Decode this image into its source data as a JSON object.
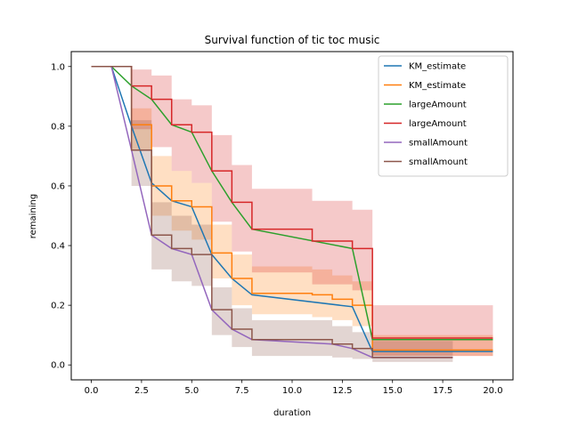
{
  "chart_data": {
    "type": "line",
    "title": "Survival function of tic toc music",
    "xlabel": "duration",
    "ylabel": "remaining",
    "xlim": [
      -1,
      21
    ],
    "ylim": [
      -0.05,
      1.05
    ],
    "xticks": [
      0.0,
      2.5,
      5.0,
      7.5,
      10.0,
      12.5,
      15.0,
      17.5,
      20.0
    ],
    "xtick_labels": [
      "0.0",
      "2.5",
      "5.0",
      "7.5",
      "10.0",
      "12.5",
      "15.0",
      "17.5",
      "20.0"
    ],
    "yticks": [
      0.0,
      0.2,
      0.4,
      0.6,
      0.8,
      1.0
    ],
    "ytick_labels": [
      "0.0",
      "0.2",
      "0.4",
      "0.6",
      "0.8",
      "1.0"
    ],
    "grid": false,
    "legend_position": "top-right",
    "series": [
      {
        "name": "KM_estimate",
        "color": "#1f77b4",
        "style": "line",
        "points": [
          [
            0,
            1.0
          ],
          [
            1,
            1.0
          ],
          [
            2,
            0.8
          ],
          [
            3,
            0.61
          ],
          [
            4,
            0.55
          ],
          [
            5,
            0.53
          ],
          [
            6,
            0.37
          ],
          [
            7,
            0.29
          ],
          [
            8,
            0.235
          ],
          [
            13,
            0.195
          ],
          [
            14,
            0.045
          ],
          [
            20,
            0.045
          ]
        ]
      },
      {
        "name": "KM_estimate",
        "color": "#ff7f0e",
        "style": "step",
        "points": [
          [
            0,
            1.0
          ],
          [
            2,
            1.0
          ],
          [
            2,
            0.805
          ],
          [
            3,
            0.805
          ],
          [
            3,
            0.6
          ],
          [
            4,
            0.6
          ],
          [
            4,
            0.55
          ],
          [
            5,
            0.55
          ],
          [
            5,
            0.53
          ],
          [
            6,
            0.53
          ],
          [
            6,
            0.375
          ],
          [
            7,
            0.375
          ],
          [
            7,
            0.29
          ],
          [
            8,
            0.29
          ],
          [
            8,
            0.24
          ],
          [
            11,
            0.24
          ],
          [
            11,
            0.235
          ],
          [
            12,
            0.235
          ],
          [
            12,
            0.22
          ],
          [
            13,
            0.22
          ],
          [
            13,
            0.2
          ],
          [
            14,
            0.2
          ],
          [
            14,
            0.05
          ],
          [
            20,
            0.05
          ]
        ],
        "ci_upper": [
          [
            2,
            1.0
          ],
          [
            2,
            0.86
          ],
          [
            3,
            0.86
          ],
          [
            3,
            0.7
          ],
          [
            4,
            0.7
          ],
          [
            4,
            0.65
          ],
          [
            5,
            0.65
          ],
          [
            5,
            0.61
          ],
          [
            6,
            0.61
          ],
          [
            6,
            0.47
          ],
          [
            7,
            0.47
          ],
          [
            7,
            0.37
          ],
          [
            8,
            0.37
          ],
          [
            8,
            0.33
          ],
          [
            11,
            0.33
          ],
          [
            11,
            0.32
          ],
          [
            12,
            0.32
          ],
          [
            12,
            0.3
          ],
          [
            13,
            0.3
          ],
          [
            13,
            0.28
          ],
          [
            14,
            0.28
          ],
          [
            14,
            0.1
          ],
          [
            20,
            0.1
          ]
        ],
        "ci_lower": [
          [
            2,
            1.0
          ],
          [
            2,
            0.72
          ],
          [
            3,
            0.72
          ],
          [
            3,
            0.5
          ],
          [
            4,
            0.5
          ],
          [
            4,
            0.45
          ],
          [
            5,
            0.45
          ],
          [
            5,
            0.42
          ],
          [
            6,
            0.42
          ],
          [
            6,
            0.29
          ],
          [
            7,
            0.29
          ],
          [
            7,
            0.2
          ],
          [
            8,
            0.2
          ],
          [
            8,
            0.17
          ],
          [
            11,
            0.17
          ],
          [
            11,
            0.16
          ],
          [
            12,
            0.16
          ],
          [
            12,
            0.15
          ],
          [
            13,
            0.15
          ],
          [
            13,
            0.13
          ],
          [
            14,
            0.13
          ],
          [
            14,
            0.03
          ],
          [
            20,
            0.03
          ]
        ]
      },
      {
        "name": "largeAmount",
        "color": "#2ca02c",
        "style": "line",
        "points": [
          [
            0,
            1.0
          ],
          [
            1,
            1.0
          ],
          [
            2,
            0.935
          ],
          [
            3,
            0.89
          ],
          [
            4,
            0.805
          ],
          [
            5,
            0.78
          ],
          [
            6,
            0.65
          ],
          [
            7,
            0.545
          ],
          [
            8,
            0.455
          ],
          [
            13,
            0.39
          ],
          [
            14,
            0.085
          ],
          [
            20,
            0.085
          ]
        ]
      },
      {
        "name": "largeAmount",
        "color": "#d62728",
        "style": "step",
        "points": [
          [
            0,
            1.0
          ],
          [
            2,
            1.0
          ],
          [
            2,
            0.935
          ],
          [
            3,
            0.935
          ],
          [
            3,
            0.89
          ],
          [
            4,
            0.89
          ],
          [
            4,
            0.805
          ],
          [
            5,
            0.805
          ],
          [
            5,
            0.78
          ],
          [
            6,
            0.78
          ],
          [
            6,
            0.65
          ],
          [
            7,
            0.65
          ],
          [
            7,
            0.545
          ],
          [
            8,
            0.545
          ],
          [
            8,
            0.455
          ],
          [
            11,
            0.455
          ],
          [
            11,
            0.415
          ],
          [
            13,
            0.415
          ],
          [
            13,
            0.39
          ],
          [
            14,
            0.39
          ],
          [
            14,
            0.09
          ],
          [
            20,
            0.09
          ]
        ],
        "ci_upper": [
          [
            2,
            1.0
          ],
          [
            2,
            0.99
          ],
          [
            3,
            0.99
          ],
          [
            3,
            0.97
          ],
          [
            4,
            0.97
          ],
          [
            4,
            0.89
          ],
          [
            5,
            0.89
          ],
          [
            5,
            0.87
          ],
          [
            6,
            0.87
          ],
          [
            6,
            0.77
          ],
          [
            7,
            0.77
          ],
          [
            7,
            0.67
          ],
          [
            8,
            0.67
          ],
          [
            8,
            0.59
          ],
          [
            11,
            0.59
          ],
          [
            11,
            0.55
          ],
          [
            13,
            0.55
          ],
          [
            13,
            0.52
          ],
          [
            14,
            0.52
          ],
          [
            14,
            0.2
          ],
          [
            20,
            0.2
          ]
        ],
        "ci_lower": [
          [
            2,
            1.0
          ],
          [
            2,
            0.79
          ],
          [
            3,
            0.79
          ],
          [
            3,
            0.73
          ],
          [
            4,
            0.73
          ],
          [
            4,
            0.65
          ],
          [
            5,
            0.65
          ],
          [
            5,
            0.61
          ],
          [
            6,
            0.61
          ],
          [
            6,
            0.48
          ],
          [
            7,
            0.48
          ],
          [
            7,
            0.38
          ],
          [
            8,
            0.38
          ],
          [
            8,
            0.31
          ],
          [
            11,
            0.31
          ],
          [
            11,
            0.27
          ],
          [
            13,
            0.27
          ],
          [
            13,
            0.25
          ],
          [
            14,
            0.25
          ],
          [
            14,
            0.03
          ],
          [
            20,
            0.03
          ]
        ]
      },
      {
        "name": "smallAmount",
        "color": "#9467bd",
        "style": "line",
        "points": [
          [
            0,
            1.0
          ],
          [
            1,
            1.0
          ],
          [
            2,
            0.72
          ],
          [
            3,
            0.435
          ],
          [
            4,
            0.39
          ],
          [
            5,
            0.37
          ],
          [
            6,
            0.185
          ],
          [
            7,
            0.12
          ],
          [
            8,
            0.085
          ],
          [
            12,
            0.07
          ],
          [
            13,
            0.055
          ],
          [
            14,
            0.025
          ],
          [
            18,
            0.025
          ]
        ]
      },
      {
        "name": "smallAmount",
        "color": "#8c564b",
        "style": "step",
        "points": [
          [
            0,
            1.0
          ],
          [
            2,
            1.0
          ],
          [
            2,
            0.72
          ],
          [
            3,
            0.72
          ],
          [
            3,
            0.435
          ],
          [
            4,
            0.435
          ],
          [
            4,
            0.39
          ],
          [
            5,
            0.39
          ],
          [
            5,
            0.37
          ],
          [
            6,
            0.37
          ],
          [
            6,
            0.185
          ],
          [
            7,
            0.185
          ],
          [
            7,
            0.12
          ],
          [
            8,
            0.12
          ],
          [
            8,
            0.085
          ],
          [
            12,
            0.085
          ],
          [
            12,
            0.07
          ],
          [
            13,
            0.07
          ],
          [
            13,
            0.055
          ],
          [
            14,
            0.055
          ],
          [
            14,
            0.025
          ],
          [
            18,
            0.025
          ]
        ],
        "ci_upper": [
          [
            2,
            1.0
          ],
          [
            2,
            0.82
          ],
          [
            3,
            0.82
          ],
          [
            3,
            0.545
          ],
          [
            4,
            0.545
          ],
          [
            4,
            0.5
          ],
          [
            5,
            0.5
          ],
          [
            5,
            0.47
          ],
          [
            6,
            0.47
          ],
          [
            6,
            0.26
          ],
          [
            7,
            0.26
          ],
          [
            7,
            0.19
          ],
          [
            8,
            0.19
          ],
          [
            8,
            0.15
          ],
          [
            12,
            0.15
          ],
          [
            12,
            0.13
          ],
          [
            13,
            0.13
          ],
          [
            13,
            0.11
          ],
          [
            14,
            0.11
          ],
          [
            14,
            0.08
          ],
          [
            18,
            0.08
          ]
        ],
        "ci_lower": [
          [
            2,
            1.0
          ],
          [
            2,
            0.6
          ],
          [
            3,
            0.6
          ],
          [
            3,
            0.32
          ],
          [
            4,
            0.32
          ],
          [
            4,
            0.28
          ],
          [
            5,
            0.28
          ],
          [
            5,
            0.265
          ],
          [
            6,
            0.265
          ],
          [
            6,
            0.1
          ],
          [
            7,
            0.1
          ],
          [
            7,
            0.06
          ],
          [
            8,
            0.06
          ],
          [
            8,
            0.03
          ],
          [
            12,
            0.03
          ],
          [
            12,
            0.025
          ],
          [
            13,
            0.025
          ],
          [
            13,
            0.02
          ],
          [
            14,
            0.02
          ],
          [
            14,
            0.01
          ],
          [
            18,
            0.01
          ]
        ]
      }
    ]
  }
}
